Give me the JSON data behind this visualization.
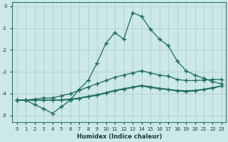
{
  "xlabel": "Humidex (Indice chaleur)",
  "background_color": "#cce8e8",
  "grid_color": "#b0d0d0",
  "line_color": "#1a6b5a",
  "x_values": [
    0,
    1,
    2,
    3,
    4,
    5,
    6,
    7,
    8,
    9,
    10,
    11,
    12,
    13,
    14,
    15,
    16,
    17,
    18,
    19,
    20,
    21,
    22,
    23
  ],
  "curve_main": [
    -4.3,
    -4.3,
    -4.5,
    -4.7,
    -4.9,
    -4.6,
    -4.3,
    -3.8,
    -3.4,
    -2.6,
    -1.7,
    -1.2,
    -1.5,
    -0.3,
    -0.45,
    -1.05,
    -1.5,
    -1.8,
    -2.5,
    -2.95,
    -3.15,
    -3.3,
    -3.45,
    -3.55
  ],
  "curve_upper": [
    -4.3,
    -4.3,
    -4.25,
    -4.2,
    -4.2,
    -4.1,
    -4.0,
    -3.85,
    -3.7,
    -3.55,
    -3.4,
    -3.25,
    -3.15,
    -3.05,
    -2.95,
    -3.05,
    -3.15,
    -3.2,
    -3.35,
    -3.4,
    -3.4,
    -3.38,
    -3.35,
    -3.35
  ],
  "curve_lower": [
    -4.3,
    -4.3,
    -4.3,
    -4.3,
    -4.3,
    -4.3,
    -4.28,
    -4.22,
    -4.15,
    -4.08,
    -3.98,
    -3.88,
    -3.8,
    -3.72,
    -3.65,
    -3.72,
    -3.78,
    -3.82,
    -3.88,
    -3.9,
    -3.88,
    -3.82,
    -3.75,
    -3.65
  ],
  "curve_flat": [
    -4.3,
    -4.3,
    -4.3,
    -4.3,
    -4.3,
    -4.28,
    -4.25,
    -4.2,
    -4.12,
    -4.05,
    -3.95,
    -3.85,
    -3.77,
    -3.7,
    -3.62,
    -3.68,
    -3.75,
    -3.8,
    -3.85,
    -3.87,
    -3.85,
    -3.8,
    -3.72,
    -3.65
  ],
  "ylim": [
    -5.3,
    0.2
  ],
  "xlim": [
    -0.5,
    23.5
  ],
  "yticks": [
    0,
    -1,
    -2,
    -3,
    -4,
    -5
  ],
  "xticks": [
    0,
    1,
    2,
    3,
    4,
    5,
    6,
    7,
    8,
    9,
    10,
    11,
    12,
    13,
    14,
    15,
    16,
    17,
    18,
    19,
    20,
    21,
    22,
    23
  ]
}
